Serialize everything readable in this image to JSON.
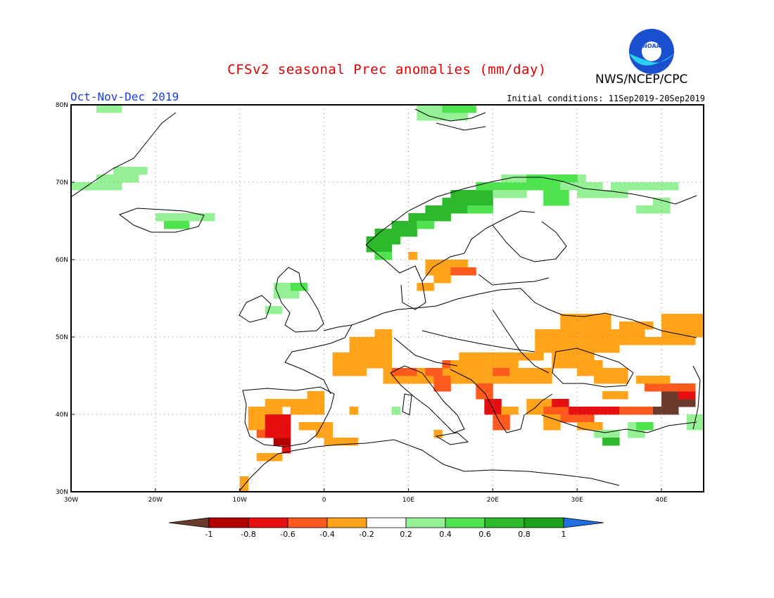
{
  "header": {
    "title": "CFSv2 seasonal Prec anomalies (mm/day)",
    "organization": "NWS/NCEP/CPC",
    "period": "Oct-Nov-Dec 2019",
    "initial_conditions": "Initial conditions: 11Sep2019-20Sep2019",
    "logo_text": "NOAA"
  },
  "map": {
    "lon_range": [
      -30,
      45
    ],
    "lat_range": [
      30,
      80
    ],
    "lat_ticks": [
      "80N",
      "70N",
      "60N",
      "50N",
      "40N",
      "30N"
    ],
    "lon_ticks": [
      "30W",
      "20W",
      "10W",
      "0",
      "10E",
      "20E",
      "30E",
      "40E"
    ],
    "grid": true
  },
  "colorbar": {
    "labels": [
      "-1",
      "-0.8",
      "-0.6",
      "-0.4",
      "-0.2",
      "0.2",
      "0.4",
      "0.6",
      "0.8",
      "1"
    ],
    "colors": [
      "#6b3a2a",
      "#b30000",
      "#e60f0f",
      "#ff5a1e",
      "#ffa31a",
      "#ffffff",
      "#96f096",
      "#4fe34f",
      "#2cba2c",
      "#1aa01a",
      "#1f6fe0"
    ]
  },
  "colors": {
    "dry1": "#ffa31a",
    "dry2": "#ff5a1e",
    "dry3": "#e60f0f",
    "dry4": "#b30000",
    "dry5": "#6b3a2a",
    "wet1": "#96f096",
    "wet2": "#4fe34f",
    "wet3": "#2cba2c",
    "wet4": "#1aa01a"
  }
}
